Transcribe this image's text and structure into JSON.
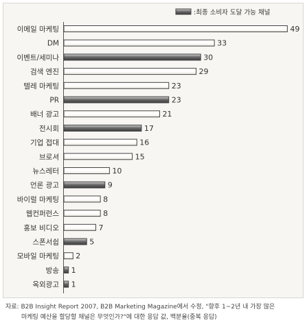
{
  "chart_data": {
    "type": "bar",
    "orientation": "horizontal",
    "legend": {
      "label": ":최종 소비자 도달 가능 채널",
      "position": "top-right"
    },
    "categories": [
      "이메일 마케팅",
      "DM",
      "이벤트/세미나",
      "검색 엔진",
      "텔레 마케팅",
      "PR",
      "배너 광고",
      "전시회",
      "기업 접대",
      "브로셔",
      "뉴스레터",
      "언론 광고",
      "바이럴 마케팅",
      "웹컨퍼런스",
      "홍보 비디오",
      "스폰서쉽",
      "모바일 마케팅",
      "방송",
      "옥외광고"
    ],
    "values": [
      49,
      33,
      30,
      29,
      23,
      23,
      21,
      17,
      16,
      15,
      10,
      9,
      8,
      8,
      7,
      5,
      2,
      1,
      1
    ],
    "highlighted": [
      false,
      false,
      true,
      false,
      false,
      true,
      false,
      true,
      false,
      false,
      false,
      true,
      false,
      false,
      false,
      true,
      false,
      true,
      true
    ],
    "xlim": [
      0,
      50
    ],
    "grid": false,
    "colors": {
      "plain_bar": "#ffffff",
      "highlight_bar": "#7a7a7a",
      "bar_border": "#444444"
    }
  },
  "source": {
    "line1": "자료: B2B Insight Report 2007, B2B Marketing Magazine에서 수정, \"향후 1~2년 내 가장 많은",
    "line2": "마케팅 예산을 할당할 채널은 무엇인가?\"에 대한 응답 값, 백분율(중복 응답)"
  }
}
